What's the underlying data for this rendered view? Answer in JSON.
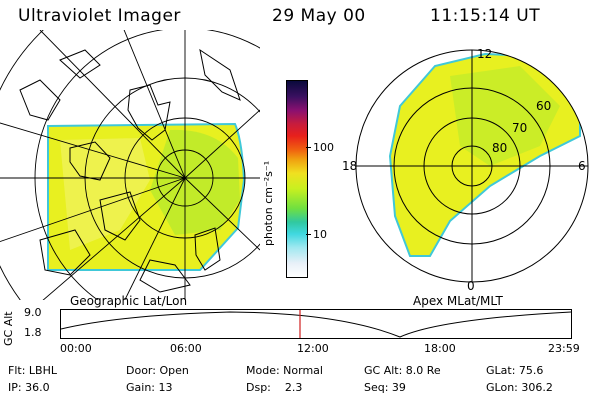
{
  "header": {
    "title": "Ultraviolet Imager",
    "date": "29 May 00",
    "time": "11:15:14 UT"
  },
  "left_panel": {
    "caption": "Geographic Lat/Lon"
  },
  "right_panel": {
    "caption": "Apex MLat/MLT",
    "mlt_labels": {
      "top": "12",
      "left": "18",
      "right": "6",
      "bottom": "0"
    },
    "lat_labels": [
      "60",
      "70",
      "80"
    ]
  },
  "colorbar": {
    "unit_label": "photon cm⁻²s⁻¹",
    "ticks": [
      "100",
      "10"
    ],
    "colors": [
      "#0a0a3c",
      "#3a1060",
      "#8a1070",
      "#c81c3c",
      "#e8201c",
      "#f06010",
      "#f0a010",
      "#f0e020",
      "#c8f020",
      "#70e040",
      "#30c8a0",
      "#40d8e0",
      "#a0e8f0",
      "#e8f0f8",
      "#ffffff"
    ]
  },
  "altitude_plot": {
    "axis_title": "GC Alt",
    "y_ticks": [
      "9.0",
      "1.8"
    ],
    "x_ticks": [
      "00:00",
      "06:00",
      "12:00",
      "18:00",
      "23:59"
    ],
    "cursor_color": "#d02020"
  },
  "footer": {
    "row1": [
      "Flt: LBHL",
      "Door: Open",
      "Mode: Normal",
      "GC Alt: 8.0 Re",
      "GLat: 75.6"
    ],
    "row2": [
      "IP: 36.0",
      "Gain: 13",
      "Dsp:    2.3",
      "Seq: 39",
      "GLon: 306.2"
    ]
  }
}
